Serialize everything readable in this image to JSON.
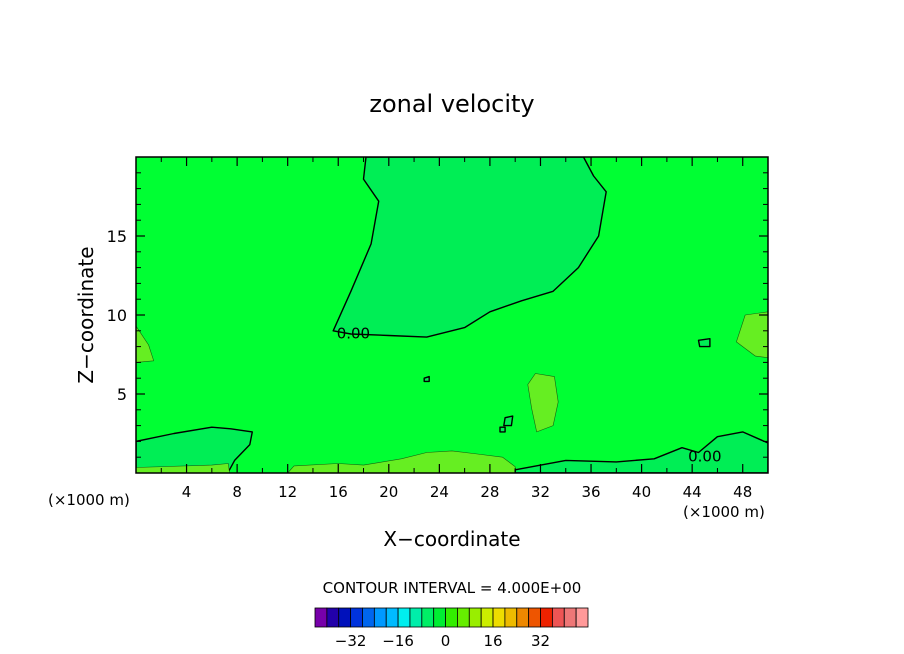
{
  "chart_data": {
    "type": "heatmap",
    "title": "zonal velocity",
    "xlabel": "X−coordinate",
    "ylabel": "Z−coordinate",
    "x_unit_left": "(×1000 m)",
    "x_unit_right": "(×1000 m)",
    "xlim": [
      0,
      50
    ],
    "ylim": [
      0,
      20
    ],
    "xticks": [
      4,
      8,
      12,
      16,
      20,
      24,
      28,
      32,
      36,
      40,
      44,
      48
    ],
    "yticks": [
      5,
      10,
      15
    ],
    "background_fill": "#00ff33",
    "contour_labels": [
      {
        "text": "0.00",
        "x": 17.2,
        "y": 8.8
      },
      {
        "text": "0.00",
        "x": 45.0,
        "y": 1.0
      }
    ],
    "regions": [
      {
        "name": "upper-negative-lobe",
        "fill": "#00ee55",
        "outline": "solid",
        "points": [
          [
            18.2,
            20
          ],
          [
            18.0,
            18.6
          ],
          [
            19.2,
            17.2
          ],
          [
            18.6,
            14.5
          ],
          [
            17.0,
            11.5
          ],
          [
            15.6,
            9.0
          ],
          [
            17.0,
            8.8
          ],
          [
            20.0,
            8.7
          ],
          [
            23.0,
            8.6
          ],
          [
            26.0,
            9.2
          ],
          [
            28.0,
            10.2
          ],
          [
            30.5,
            10.9
          ],
          [
            33.0,
            11.5
          ],
          [
            35.0,
            13.0
          ],
          [
            36.6,
            15.0
          ],
          [
            37.2,
            17.8
          ],
          [
            36.2,
            18.8
          ],
          [
            35.4,
            20
          ]
        ]
      },
      {
        "name": "lower-left-negative",
        "fill": "#00ee55",
        "outline": "solid",
        "points": [
          [
            0,
            2.0
          ],
          [
            3.0,
            2.5
          ],
          [
            6.0,
            2.9
          ],
          [
            7.5,
            2.8
          ],
          [
            9.2,
            2.6
          ],
          [
            9.0,
            1.8
          ],
          [
            7.8,
            0.8
          ],
          [
            7.4,
            0.2
          ],
          [
            7.2,
            0
          ],
          [
            0,
            0
          ]
        ]
      },
      {
        "name": "bottom-left-positive-strip",
        "fill": "#66ee22",
        "outline": "thin",
        "points": [
          [
            0,
            0
          ],
          [
            0,
            0.35
          ],
          [
            6,
            0.5
          ],
          [
            7.3,
            0.6
          ],
          [
            7.4,
            0
          ],
          [
            0,
            0
          ]
        ]
      },
      {
        "name": "bottom-center-positive-strip",
        "fill": "#66ee22",
        "outline": "thin",
        "points": [
          [
            12,
            0
          ],
          [
            12.5,
            0.45
          ],
          [
            16,
            0.6
          ],
          [
            18,
            0.5
          ],
          [
            21,
            0.9
          ],
          [
            23,
            1.3
          ],
          [
            25,
            1.4
          ],
          [
            27,
            1.2
          ],
          [
            29,
            1.0
          ],
          [
            30,
            0.4
          ],
          [
            30,
            0
          ]
        ]
      },
      {
        "name": "bottom-right-negative",
        "fill": "#00ee55",
        "outline": "solid",
        "points": [
          [
            30,
            0.2
          ],
          [
            34,
            0.8
          ],
          [
            38,
            0.7
          ],
          [
            41,
            0.9
          ],
          [
            43.2,
            1.6
          ],
          [
            44.5,
            1.3
          ],
          [
            46.0,
            2.3
          ],
          [
            48.0,
            2.6
          ],
          [
            50,
            1.9
          ],
          [
            50,
            0
          ],
          [
            30,
            0
          ]
        ]
      },
      {
        "name": "right-edge-positive",
        "fill": "#66ee22",
        "outline": "thin",
        "points": [
          [
            50,
            10.2
          ],
          [
            48.2,
            10.0
          ],
          [
            47.5,
            8.3
          ],
          [
            49.0,
            7.4
          ],
          [
            50,
            7.3
          ]
        ]
      },
      {
        "name": "left-edge-positive",
        "fill": "#66ee22",
        "outline": "thin",
        "points": [
          [
            0,
            9.3
          ],
          [
            1.0,
            8.1
          ],
          [
            1.4,
            7.1
          ],
          [
            0,
            7.0
          ]
        ]
      },
      {
        "name": "center-positive-blob",
        "fill": "#66ee22",
        "outline": "thin",
        "points": [
          [
            31.6,
            6.3
          ],
          [
            33.1,
            6.1
          ],
          [
            33.4,
            4.5
          ],
          [
            33.0,
            3.0
          ],
          [
            31.7,
            2.6
          ],
          [
            31.3,
            4.1
          ],
          [
            31.0,
            5.6
          ]
        ]
      },
      {
        "name": "small-negative-blob-1",
        "fill": "#00ee55",
        "outline": "solid",
        "points": [
          [
            44.5,
            8.4
          ],
          [
            45.4,
            8.5
          ],
          [
            45.4,
            8.0
          ],
          [
            44.6,
            8.0
          ]
        ]
      },
      {
        "name": "small-negative-blob-2",
        "fill": "#00ee55",
        "outline": "solid",
        "points": [
          [
            22.8,
            6.0
          ],
          [
            23.2,
            6.1
          ],
          [
            23.2,
            5.8
          ],
          [
            22.8,
            5.8
          ]
        ]
      },
      {
        "name": "small-negative-blob-3",
        "fill": "#00ee55",
        "outline": "solid",
        "points": [
          [
            29.2,
            3.5
          ],
          [
            29.8,
            3.6
          ],
          [
            29.7,
            3.0
          ],
          [
            29.1,
            3.0
          ]
        ]
      },
      {
        "name": "small-negative-blob-4",
        "fill": "#00ee55",
        "outline": "solid",
        "points": [
          [
            28.8,
            2.9
          ],
          [
            29.2,
            2.9
          ],
          [
            29.2,
            2.6
          ],
          [
            28.8,
            2.6
          ]
        ]
      }
    ],
    "contour_interval_label": "CONTOUR INTERVAL = 4.000E+00",
    "colorbar": {
      "colors": [
        "#7700aa",
        "#2200aa",
        "#0011bb",
        "#0033dd",
        "#0066ee",
        "#0099ff",
        "#00bbff",
        "#00eeee",
        "#00eeaa",
        "#00ee66",
        "#00ee33",
        "#33ee00",
        "#66ee00",
        "#99ee00",
        "#ccee00",
        "#eedd00",
        "#eebb00",
        "#ee8800",
        "#ee5500",
        "#ee2200",
        "#ee5555",
        "#ee7777",
        "#ff9999"
      ],
      "tick_labels": [
        "−32",
        "−16",
        "0",
        "16",
        "32"
      ],
      "tick_values": [
        -32,
        -16,
        0,
        16,
        32
      ],
      "vmin": -44,
      "vmax": 48
    }
  }
}
